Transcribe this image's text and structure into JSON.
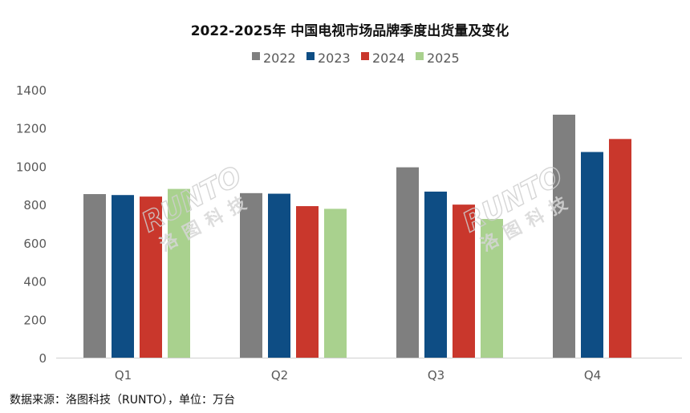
{
  "chart_data": {
    "type": "bar",
    "title": "2022-2025年 中国电视市场品牌季度出货量及变化",
    "categories": [
      "Q1",
      "Q2",
      "Q3",
      "Q4"
    ],
    "series": [
      {
        "name": "2022",
        "color": "#7f7f7f",
        "values": [
          855,
          860,
          995,
          1270
        ]
      },
      {
        "name": "2023",
        "color": "#0e4d84",
        "values": [
          850,
          857,
          868,
          1075
        ]
      },
      {
        "name": "2024",
        "color": "#c9372c",
        "values": [
          842,
          792,
          800,
          1143
        ]
      },
      {
        "name": "2025",
        "color": "#a9d18e",
        "values": [
          882,
          778,
          725,
          null
        ]
      }
    ],
    "ylim": [
      0,
      1400
    ],
    "yticks": [
      0,
      200,
      400,
      600,
      800,
      1000,
      1200,
      1400
    ],
    "legend_position": "top",
    "grid": false
  },
  "footer": {
    "source": "数据来源：洛图科技（RUNTO），单位：万台"
  },
  "watermark": {
    "latin": "RUNTO",
    "cjk": "洛图科技"
  }
}
